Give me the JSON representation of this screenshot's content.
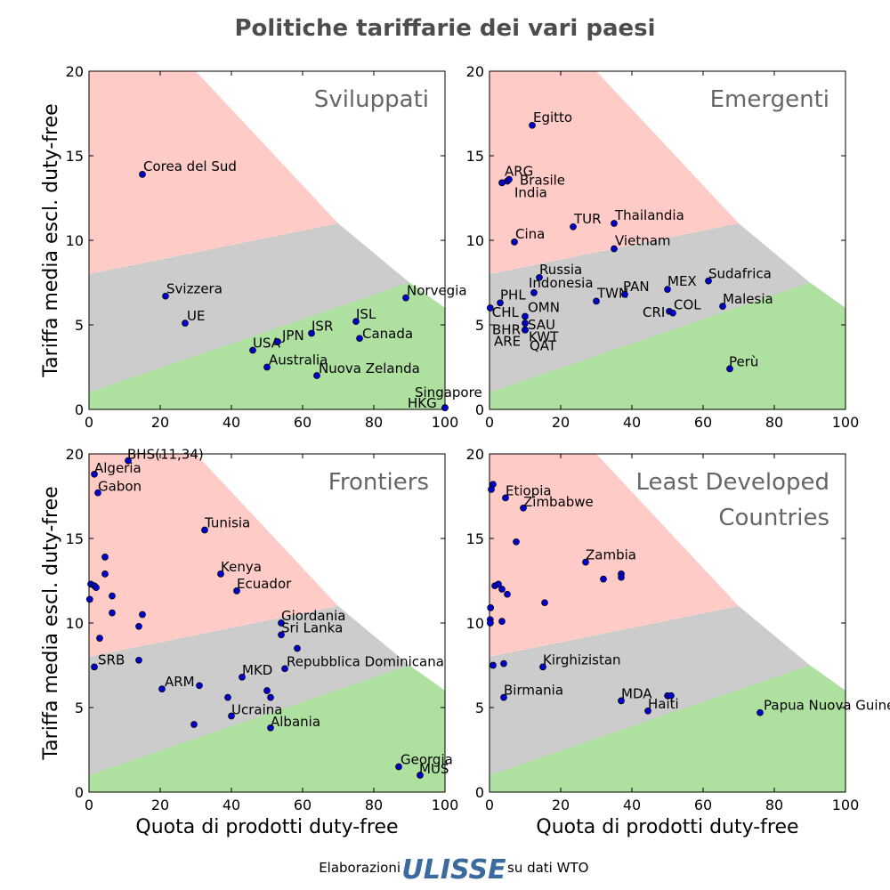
{
  "title": "Politiche tariffarie dei vari paesi",
  "xlabel": "Quota di prodotti duty-free",
  "ylabel": "Tariffa media escl. duty-free",
  "footer": {
    "left": "Elaborazioni",
    "logo": "ULISSE",
    "right": "su dati WTO"
  },
  "colors": {
    "red_zone": "#ffcbc6",
    "grey_zone": "#cccccc",
    "green_zone": "#aee0a0",
    "point": "#0000cc",
    "panel_title": "#666666"
  },
  "chart_data": [
    {
      "type": "scatter",
      "panel_title": [
        "Sviluppati"
      ],
      "xlim": [
        0,
        100
      ],
      "ylim": [
        0,
        20
      ],
      "xticks": [
        0,
        20,
        40,
        60,
        80,
        100
      ],
      "yticks": [
        0,
        5,
        10,
        15,
        20
      ],
      "zones": {
        "red_upper": [
          [
            0,
            20
          ],
          [
            30,
            20
          ],
          [
            70,
            11
          ],
          [
            0,
            8
          ]
        ],
        "grey_upper": [
          [
            0,
            8
          ],
          [
            70,
            11
          ],
          [
            90,
            7.5
          ],
          [
            0,
            1
          ]
        ],
        "green_upper": [
          [
            0,
            1
          ],
          [
            90,
            7.5
          ],
          [
            100,
            6
          ],
          [
            100,
            0
          ],
          [
            0,
            0
          ]
        ]
      },
      "points": [
        {
          "label": "Corea del Sud",
          "x": 15,
          "y": 13.9
        },
        {
          "label": "Svizzera",
          "x": 21.5,
          "y": 6.7
        },
        {
          "label": "UE",
          "x": 27,
          "y": 5.1
        },
        {
          "label": "USA",
          "x": 46,
          "y": 3.5
        },
        {
          "label": "JPN",
          "x": 53,
          "y": 4.0
        },
        {
          "label": "Australia",
          "x": 50,
          "y": 2.5
        },
        {
          "label": "ISR",
          "x": 62.5,
          "y": 4.5
        },
        {
          "label": "Nuova Zelanda",
          "x": 64,
          "y": 2.0
        },
        {
          "label": "ISL",
          "x": 75,
          "y": 5.2
        },
        {
          "label": "Canada",
          "x": 76,
          "y": 4.2
        },
        {
          "label": "Norvegia",
          "x": 89,
          "y": 6.6
        },
        {
          "label": "Singapore",
          "x": 100,
          "y": 0.1
        },
        {
          "label": "HKG",
          "x": 100,
          "y": 0.1
        }
      ]
    },
    {
      "type": "scatter",
      "panel_title": [
        "Emergenti"
      ],
      "xlim": [
        0,
        100
      ],
      "ylim": [
        0,
        20
      ],
      "xticks": [
        0,
        20,
        40,
        60,
        80,
        100
      ],
      "yticks": [
        0,
        5,
        10,
        15,
        20
      ],
      "points": [
        {
          "label": "Egitto",
          "x": 12,
          "y": 16.8
        },
        {
          "label": "ARG",
          "x": 3.5,
          "y": 13.4
        },
        {
          "label": "Brasile",
          "x": 5,
          "y": 13.5
        },
        {
          "label": "India",
          "x": 5.5,
          "y": 13.6
        },
        {
          "label": "Cina",
          "x": 7,
          "y": 9.9
        },
        {
          "label": "TUR",
          "x": 23.5,
          "y": 10.8
        },
        {
          "label": "Thailandia",
          "x": 35,
          "y": 11.0
        },
        {
          "label": "Vietnam",
          "x": 35,
          "y": 9.5
        },
        {
          "label": "Russia",
          "x": 14,
          "y": 7.8
        },
        {
          "label": "Indonesia",
          "x": 12.5,
          "y": 6.9
        },
        {
          "label": "PHL",
          "x": 3,
          "y": 6.3
        },
        {
          "label": "CHL",
          "x": 0.2,
          "y": 6.0
        },
        {
          "label": "OMN",
          "x": 10,
          "y": 5.5
        },
        {
          "label": "SAU",
          "x": 10,
          "y": 5.1
        },
        {
          "label": "BHR",
          "x": 10,
          "y": 4.7
        },
        {
          "label": "KWT",
          "x": 10,
          "y": 4.7
        },
        {
          "label": "ARE",
          "x": 10,
          "y": 4.7
        },
        {
          "label": "QAT",
          "x": 10,
          "y": 4.7
        },
        {
          "label": "TWN",
          "x": 30,
          "y": 6.4
        },
        {
          "label": "PAN",
          "x": 38,
          "y": 6.8
        },
        {
          "label": "MEX",
          "x": 50,
          "y": 7.1
        },
        {
          "label": "Sudafrica",
          "x": 61.5,
          "y": 7.6
        },
        {
          "label": "CRI",
          "x": 50.5,
          "y": 5.8
        },
        {
          "label": "COL",
          "x": 51.5,
          "y": 5.7
        },
        {
          "label": "Malesia",
          "x": 65.5,
          "y": 6.1
        },
        {
          "label": "Perù",
          "x": 67.5,
          "y": 2.4
        }
      ]
    },
    {
      "type": "scatter",
      "panel_title": [
        "Frontiers"
      ],
      "xlim": [
        0,
        100
      ],
      "ylim": [
        0,
        20
      ],
      "xticks": [
        0,
        20,
        40,
        60,
        80,
        100
      ],
      "yticks": [
        0,
        5,
        10,
        15,
        20
      ],
      "points": [
        {
          "label": "BHS(11,34)",
          "x": 11,
          "y": 19.6
        },
        {
          "label": "Algeria",
          "x": 1.5,
          "y": 18.8
        },
        {
          "label": "Gabon",
          "x": 2.5,
          "y": 17.7
        },
        {
          "label": "Tunisia",
          "x": 32.5,
          "y": 15.5
        },
        {
          "label": "",
          "x": 4.5,
          "y": 13.9
        },
        {
          "label": "",
          "x": 4.5,
          "y": 12.9
        },
        {
          "label": "Kenya",
          "x": 37,
          "y": 12.9
        },
        {
          "label": "Ecuador",
          "x": 41.5,
          "y": 11.9
        },
        {
          "label": "",
          "x": 0.5,
          "y": 12.3
        },
        {
          "label": "",
          "x": 1.5,
          "y": 12.2
        },
        {
          "label": "",
          "x": 2,
          "y": 12.1
        },
        {
          "label": "",
          "x": 0.2,
          "y": 11.4
        },
        {
          "label": "",
          "x": 6.5,
          "y": 11.6
        },
        {
          "label": "",
          "x": 6.5,
          "y": 10.6
        },
        {
          "label": "",
          "x": 15,
          "y": 10.5
        },
        {
          "label": "",
          "x": 14,
          "y": 9.8
        },
        {
          "label": "",
          "x": 3,
          "y": 9.1
        },
        {
          "label": "Giordania",
          "x": 54,
          "y": 10.0
        },
        {
          "label": "Sri Lanka",
          "x": 54,
          "y": 9.3
        },
        {
          "label": "",
          "x": 58.5,
          "y": 8.5
        },
        {
          "label": "",
          "x": 14,
          "y": 7.8
        },
        {
          "label": "SRB",
          "x": 1.5,
          "y": 7.4
        },
        {
          "label": "Repubblica Dominicana",
          "x": 55,
          "y": 7.3
        },
        {
          "label": "MKD",
          "x": 43,
          "y": 6.8
        },
        {
          "label": "ARM",
          "x": 20.5,
          "y": 6.1
        },
        {
          "label": "",
          "x": 31,
          "y": 6.3
        },
        {
          "label": "",
          "x": 50,
          "y": 6.0
        },
        {
          "label": "",
          "x": 39,
          "y": 5.6
        },
        {
          "label": "",
          "x": 51,
          "y": 5.6
        },
        {
          "label": "Ucraina",
          "x": 40,
          "y": 4.5
        },
        {
          "label": "",
          "x": 29.5,
          "y": 4.0
        },
        {
          "label": "Albania",
          "x": 51,
          "y": 3.8
        },
        {
          "label": "Georgia",
          "x": 87,
          "y": 1.5
        },
        {
          "label": "MUS",
          "x": 93,
          "y": 1.0
        }
      ]
    },
    {
      "type": "scatter",
      "panel_title": [
        "Least Developed",
        "Countries"
      ],
      "xlim": [
        0,
        100
      ],
      "ylim": [
        0,
        20
      ],
      "xticks": [
        0,
        20,
        40,
        60,
        80,
        100
      ],
      "yticks": [
        0,
        5,
        10,
        15,
        20
      ],
      "points": [
        {
          "label": "",
          "x": 1,
          "y": 18.2
        },
        {
          "label": "",
          "x": 0.5,
          "y": 17.9
        },
        {
          "label": "Etiopia",
          "x": 4.5,
          "y": 17.4
        },
        {
          "label": "Zimbabwe",
          "x": 9.5,
          "y": 16.8
        },
        {
          "label": "",
          "x": 7.5,
          "y": 14.8
        },
        {
          "label": "Zambia",
          "x": 27,
          "y": 13.6
        },
        {
          "label": "",
          "x": 32,
          "y": 12.6
        },
        {
          "label": "",
          "x": 37,
          "y": 12.9
        },
        {
          "label": "",
          "x": 37,
          "y": 12.7
        },
        {
          "label": "",
          "x": 1.5,
          "y": 12.2
        },
        {
          "label": "",
          "x": 2.5,
          "y": 12.3
        },
        {
          "label": "",
          "x": 3.5,
          "y": 12.0
        },
        {
          "label": "",
          "x": 5,
          "y": 11.7
        },
        {
          "label": "",
          "x": 15.5,
          "y": 11.2
        },
        {
          "label": "",
          "x": 0.3,
          "y": 10.9
        },
        {
          "label": "",
          "x": 0.2,
          "y": 10.2
        },
        {
          "label": "",
          "x": 0.2,
          "y": 10.0
        },
        {
          "label": "",
          "x": 3.5,
          "y": 10.1
        },
        {
          "label": "",
          "x": 1,
          "y": 7.5
        },
        {
          "label": "",
          "x": 4,
          "y": 7.6
        },
        {
          "label": "Kirghizistan",
          "x": 15,
          "y": 7.4
        },
        {
          "label": "Birmania",
          "x": 4,
          "y": 5.6
        },
        {
          "label": "MDA",
          "x": 37,
          "y": 5.4
        },
        {
          "label": "",
          "x": 50,
          "y": 5.7
        },
        {
          "label": "",
          "x": 51,
          "y": 5.7
        },
        {
          "label": "Haiti",
          "x": 44.5,
          "y": 4.8
        },
        {
          "label": "Papua Nuova Guinea",
          "x": 76,
          "y": 4.7
        }
      ]
    }
  ]
}
